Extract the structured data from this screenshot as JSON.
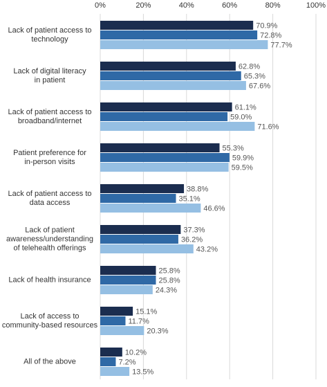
{
  "chart_data": {
    "type": "hbar",
    "categories": [
      [
        "Lack of patient access to",
        "technology"
      ],
      [
        "Lack of digital literacy",
        "in patient"
      ],
      [
        "Lack of patient access to",
        "broadband/internet"
      ],
      [
        "Patient preference for",
        "in-person visits"
      ],
      [
        "Lack of patient access to",
        "data access"
      ],
      [
        "Lack of patient",
        "awareness/understanding",
        "of telehealth offerings"
      ],
      [
        "Lack of health insurance"
      ],
      [
        "Lack of access to",
        "community-based resources"
      ],
      [
        "All of the above"
      ]
    ],
    "series": [
      {
        "color": "#1b2d4f",
        "values": [
          70.9,
          62.8,
          61.1,
          55.3,
          38.8,
          37.3,
          25.8,
          15.1,
          10.2
        ],
        "value_labels": [
          "70.9%",
          "62.8%",
          "61.1%",
          "55.3%",
          "38.8%",
          "37.3%",
          "25.8%",
          "15.1%",
          "10.2%"
        ]
      },
      {
        "color": "#2f69a6",
        "values": [
          72.8,
          65.3,
          59.0,
          59.9,
          35.1,
          36.2,
          25.8,
          11.7,
          7.2
        ],
        "value_labels": [
          "72.8%",
          "65.3%",
          "59.0%",
          "59.9%",
          "35.1%",
          "36.2%",
          "25.8%",
          "11.7%",
          "7.2%"
        ]
      },
      {
        "color": "#95bfe3",
        "values": [
          77.7,
          67.6,
          71.6,
          59.5,
          46.6,
          43.2,
          24.3,
          20.3,
          13.5
        ],
        "value_labels": [
          "77.7%",
          "67.6%",
          "71.6%",
          "59.5%",
          "46.6%",
          "43.2%",
          "24.3%",
          "20.3%",
          "13.5%"
        ]
      }
    ],
    "xlim": [
      0,
      100
    ],
    "xticks": [
      {
        "value": 0,
        "label": "0%"
      },
      {
        "value": 20,
        "label": "20%"
      },
      {
        "value": 40,
        "label": "40%"
      },
      {
        "value": 60,
        "label": "60%"
      },
      {
        "value": 80,
        "label": "80%"
      },
      {
        "value": 100,
        "label": "100%"
      }
    ],
    "grid": true
  }
}
